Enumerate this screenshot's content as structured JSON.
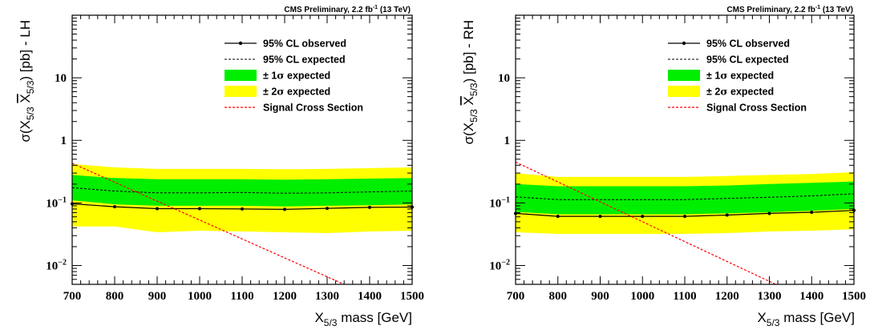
{
  "header": "CMS Preliminary, 2.2 fb",
  "header_sup": "-1",
  "header_tail": " (13 TeV)",
  "colors": {
    "band1": "#00ee00",
    "band2": "#ffff00",
    "observed": "#000000",
    "expected": "#000000",
    "signal": "#ff0000"
  },
  "legend": {
    "observed": "95% CL observed",
    "expected": "95% CL expected",
    "band1_pre": "± 1",
    "band1_sym": "σ",
    "band1_post": " expected",
    "band2_pre": "± 2",
    "band2_sym": "σ",
    "band2_post": " expected",
    "signal": "Signal Cross Section"
  },
  "chart_data": [
    {
      "type": "line",
      "panel": "LH",
      "xlabel": "X5/3 mass [GeV]",
      "ylabel": "σ(X5/3 X̄5/3) [pb] - LH",
      "xlim": [
        700,
        1500
      ],
      "ylim": [
        0.005,
        100
      ],
      "yscale": "log",
      "x_ticks": [
        700,
        800,
        900,
        1000,
        1100,
        1200,
        1300,
        1400,
        1500
      ],
      "x_tick_labels": [
        "700",
        "800",
        "900",
        "1000",
        "1100",
        "1200",
        "1300",
        "1400",
        "1500"
      ],
      "y_ticks": [
        0.01,
        0.1,
        1,
        10
      ],
      "y_tick_labels": [
        {
          "base": "10",
          "exp": "−2"
        },
        {
          "base": "10",
          "exp": "−1"
        },
        {
          "base": "1",
          "exp": ""
        },
        {
          "base": "10",
          "exp": ""
        }
      ],
      "x": [
        700,
        800,
        900,
        1000,
        1100,
        1200,
        1300,
        1400,
        1500
      ],
      "observed": [
        0.097,
        0.087,
        0.081,
        0.081,
        0.08,
        0.079,
        0.082,
        0.085,
        0.086
      ],
      "expected": [
        0.175,
        0.155,
        0.145,
        0.145,
        0.147,
        0.143,
        0.145,
        0.15,
        0.155
      ],
      "band_1sigma": {
        "low": [
          0.11,
          0.095,
          0.09,
          0.09,
          0.09,
          0.088,
          0.09,
          0.092,
          0.095
        ],
        "high": [
          0.28,
          0.25,
          0.24,
          0.24,
          0.24,
          0.235,
          0.24,
          0.245,
          0.25
        ]
      },
      "band_2sigma": {
        "low": [
          0.042,
          0.042,
          0.034,
          0.036,
          0.035,
          0.034,
          0.033,
          0.035,
          0.036
        ],
        "high": [
          0.42,
          0.37,
          0.35,
          0.35,
          0.35,
          0.345,
          0.35,
          0.36,
          0.37
        ]
      },
      "signal_x": [
        700,
        1340
      ],
      "signal_y": [
        0.43,
        0.005
      ]
    },
    {
      "type": "line",
      "panel": "RH",
      "xlabel": "X5/3 mass [GeV]",
      "ylabel": "σ(X5/3 X̄5/3) [pb] - RH",
      "xlim": [
        700,
        1500
      ],
      "ylim": [
        0.005,
        100
      ],
      "yscale": "log",
      "x_ticks": [
        700,
        800,
        900,
        1000,
        1100,
        1200,
        1300,
        1400,
        1500
      ],
      "x_tick_labels": [
        "700",
        "800",
        "900",
        "1000",
        "1100",
        "1200",
        "1300",
        "1400",
        "1500"
      ],
      "y_ticks": [
        0.01,
        0.1,
        1,
        10
      ],
      "y_tick_labels": [
        {
          "base": "10",
          "exp": "−2"
        },
        {
          "base": "10",
          "exp": "−1"
        },
        {
          "base": "1",
          "exp": ""
        },
        {
          "base": "10",
          "exp": ""
        }
      ],
      "x": [
        700,
        800,
        900,
        1000,
        1100,
        1200,
        1300,
        1400,
        1500
      ],
      "observed": [
        0.068,
        0.061,
        0.061,
        0.061,
        0.061,
        0.064,
        0.068,
        0.071,
        0.076
      ],
      "expected": [
        0.125,
        0.113,
        0.113,
        0.113,
        0.113,
        0.118,
        0.123,
        0.13,
        0.14
      ],
      "band_1sigma": {
        "low": [
          0.072,
          0.066,
          0.066,
          0.066,
          0.066,
          0.068,
          0.071,
          0.075,
          0.08
        ],
        "high": [
          0.2,
          0.185,
          0.185,
          0.185,
          0.185,
          0.19,
          0.2,
          0.21,
          0.22
        ]
      },
      "band_2sigma": {
        "low": [
          0.034,
          0.032,
          0.032,
          0.032,
          0.032,
          0.033,
          0.035,
          0.036,
          0.038
        ],
        "high": [
          0.3,
          0.26,
          0.26,
          0.26,
          0.26,
          0.27,
          0.28,
          0.29,
          0.31
        ]
      },
      "signal_x": [
        700,
        1315
      ],
      "signal_y": [
        0.45,
        0.005
      ]
    }
  ]
}
